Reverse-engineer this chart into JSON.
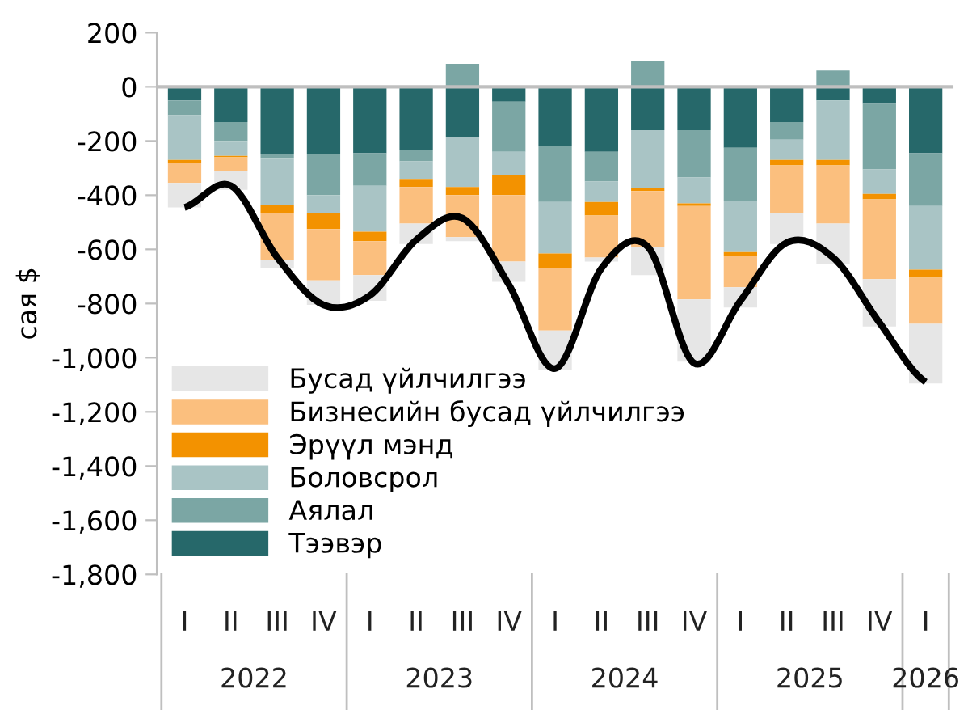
{
  "chart_data": {
    "type": "bar",
    "stacked": true,
    "ylabel": "сая $",
    "categories": [
      "I",
      "II",
      "III",
      "IV",
      "I",
      "II",
      "III",
      "IV",
      "I",
      "II",
      "III",
      "IV",
      "I",
      "II",
      "III",
      "IV",
      "I"
    ],
    "series": [
      {
        "name": "Тээвэр",
        "color": "#26686a",
        "values": [
          -50,
          -130,
          -250,
          -250,
          -245,
          -235,
          -185,
          -55,
          -220,
          -240,
          -160,
          -160,
          -225,
          -130,
          -50,
          -60,
          -245
        ]
      },
      {
        "name": "Аялал",
        "color": "#7ba6a4",
        "values": [
          -55,
          -70,
          -15,
          -150,
          -120,
          -40,
          85,
          -185,
          -205,
          -110,
          95,
          -175,
          -195,
          -65,
          60,
          -245,
          -195
        ]
      },
      {
        "name": "Боловсрол",
        "color": "#a9c4c5",
        "values": [
          -165,
          -55,
          -170,
          -65,
          -170,
          -65,
          -185,
          -85,
          -190,
          -75,
          -215,
          -95,
          -190,
          -75,
          -220,
          -90,
          -235
        ]
      },
      {
        "name": "Эрүүл мэнд",
        "color": "#f39200",
        "values": [
          -10,
          -5,
          -30,
          -60,
          -35,
          -30,
          -30,
          -75,
          -55,
          -50,
          -10,
          -10,
          -15,
          -20,
          -20,
          -20,
          -30
        ]
      },
      {
        "name": "Бизнесийн бусад үйлчилгээ",
        "color": "#fbbf7e",
        "values": [
          -75,
          -50,
          -175,
          -190,
          -125,
          -135,
          -155,
          -245,
          -230,
          -155,
          -205,
          -345,
          -115,
          -175,
          -215,
          -295,
          -170
        ]
      },
      {
        "name": "Бусад үйлчилгээ",
        "color": "#e6e6e6",
        "values": [
          -90,
          -70,
          -30,
          -90,
          -95,
          -75,
          -15,
          -75,
          -145,
          -15,
          -105,
          -230,
          -75,
          -115,
          -150,
          -175,
          -220
        ]
      },
      {
        "type": "line",
        "color": "#000000",
        "values": [
          -445,
          -365,
          -630,
          -805,
          -770,
          -565,
          -485,
          -730,
          -1040,
          -670,
          -590,
          -1020,
          -790,
          -575,
          -630,
          -870,
          -1090
        ]
      }
    ],
    "ylim": [
      -1800,
      200
    ],
    "yticks": [
      {
        "value": -1800,
        "label": "-1,800"
      },
      {
        "value": -1600,
        "label": "-1,600"
      },
      {
        "value": -1400,
        "label": "-1,400"
      },
      {
        "value": -1200,
        "label": "-1,200"
      },
      {
        "value": -1000,
        "label": "-1,000"
      },
      -800,
      -600,
      -400,
      -200,
      0,
      200
    ],
    "ref_lines": [
      {
        "axis": "y",
        "value": 0,
        "color": "#bfbfbf"
      }
    ],
    "annotations": [
      "2022",
      "2023",
      "2024",
      "2025",
      "2026"
    ],
    "legend": "bottom left",
    "grid": false
  }
}
